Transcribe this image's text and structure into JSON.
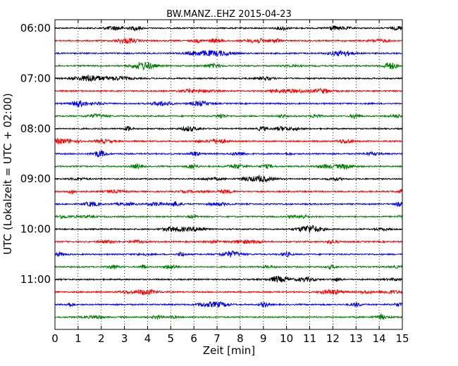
{
  "chart_data": {
    "type": "line",
    "title": "BW.MANZ..EHZ 2015-04-23",
    "xlabel": "Zeit  [min]",
    "ylabel": "UTC (Lokalzeit = UTC + 02:00)",
    "xlim": [
      0,
      15
    ],
    "x_ticks": [
      "0",
      "1",
      "2",
      "3",
      "4",
      "5",
      "6",
      "7",
      "8",
      "9",
      "10",
      "11",
      "12",
      "13",
      "14",
      "15"
    ],
    "y_ticks": [
      "06:00",
      "07:00",
      "08:00",
      "09:00",
      "10:00",
      "11:00"
    ],
    "grid": "vertical dotted",
    "colors": [
      "#000000",
      "#ff0000",
      "#0000ff",
      "#008000"
    ],
    "traces_start": "06:00",
    "trace_interval_minutes": 15,
    "trace_count": 24
  }
}
